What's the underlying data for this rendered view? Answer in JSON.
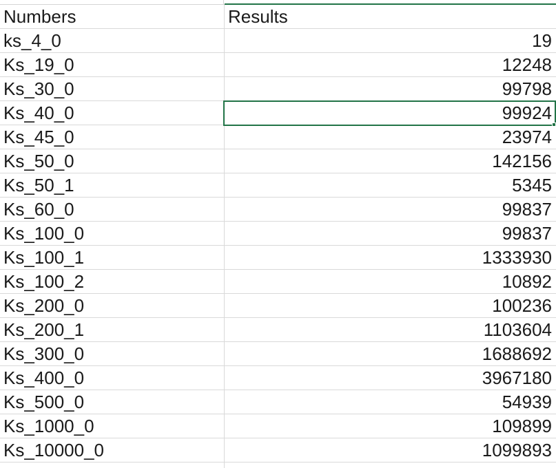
{
  "sheet": {
    "header": {
      "col_a": "Numbers",
      "col_b": "Results"
    },
    "rows": [
      {
        "a": "ks_4_0",
        "b": "19"
      },
      {
        "a": "Ks_19_0",
        "b": "12248"
      },
      {
        "a": "Ks_30_0",
        "b": "99798"
      },
      {
        "a": "Ks_40_0",
        "b": "99924"
      },
      {
        "a": "Ks_45_0",
        "b": "23974"
      },
      {
        "a": "Ks_50_0",
        "b": "142156"
      },
      {
        "a": "Ks_50_1",
        "b": "5345"
      },
      {
        "a": "Ks_60_0",
        "b": "99837"
      },
      {
        "a": "Ks_100_0",
        "b": "99837"
      },
      {
        "a": "Ks_100_1",
        "b": "1333930"
      },
      {
        "a": "Ks_100_2",
        "b": "10892"
      },
      {
        "a": "Ks_200_0",
        "b": "100236"
      },
      {
        "a": "Ks_200_1",
        "b": "1103604"
      },
      {
        "a": "Ks_300_0",
        "b": "1688692"
      },
      {
        "a": "Ks_400_0",
        "b": "3967180"
      },
      {
        "a": "Ks_500_0",
        "b": "54939"
      },
      {
        "a": "Ks_1000_0",
        "b": "109899"
      },
      {
        "a": "Ks_10000_0",
        "b": "1099893"
      }
    ],
    "selected_cell": "B5",
    "selection_color": "#217346"
  }
}
